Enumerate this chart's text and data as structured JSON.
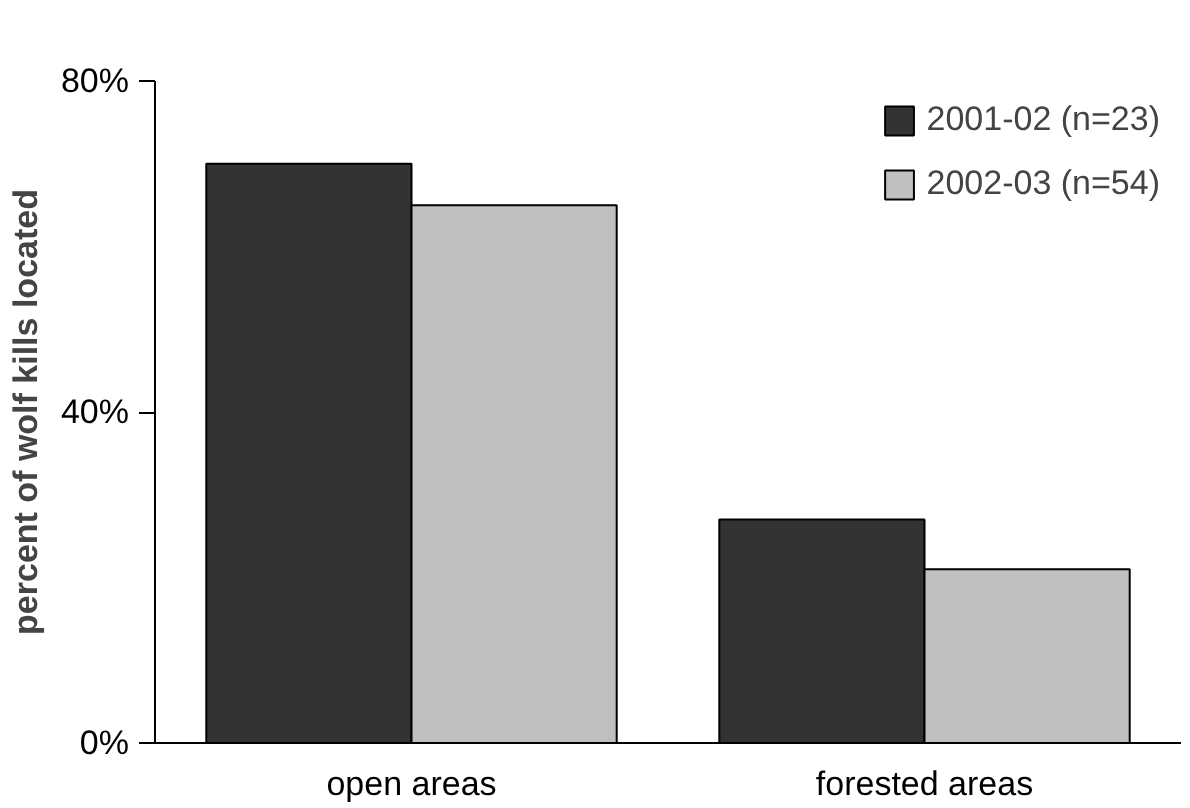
{
  "chart_data": {
    "type": "bar",
    "ylabel": "percent of wolf kills located",
    "categories": [
      "open areas",
      "forested areas"
    ],
    "series": [
      {
        "name": "2001-02 (n=23)",
        "color": "#333333",
        "values": [
          70,
          27
        ]
      },
      {
        "name": "2002-03 (n=54)",
        "color": "#c0c0c0",
        "values": [
          65,
          21
        ]
      }
    ],
    "ylim": [
      0,
      80
    ],
    "yticks": [
      {
        "value": 0,
        "label": "0%"
      },
      {
        "value": 40,
        "label": "40%"
      },
      {
        "value": 80,
        "label": "80%"
      }
    ],
    "grid": false,
    "legend": "top right"
  }
}
